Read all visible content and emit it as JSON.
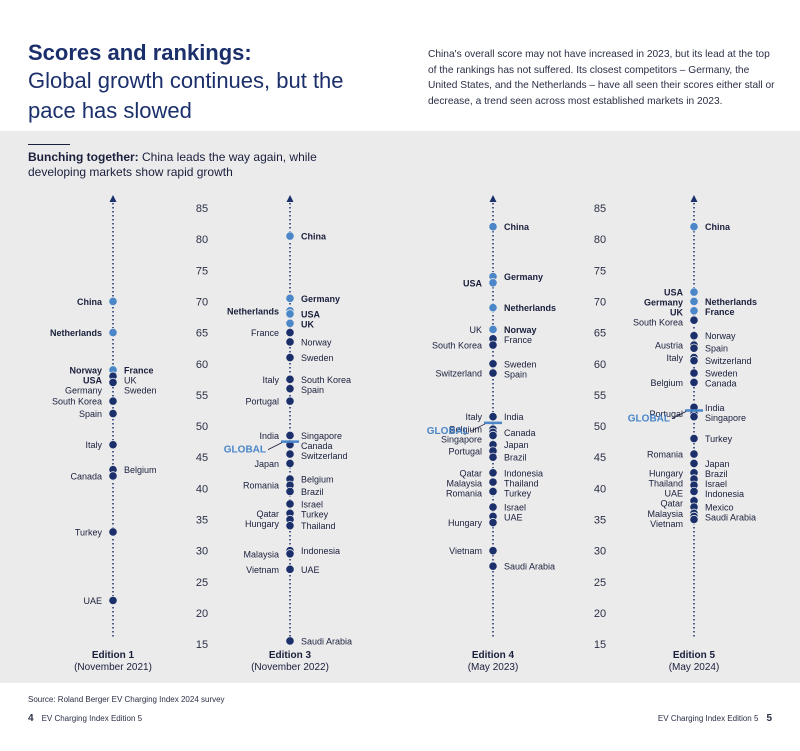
{
  "header": {
    "title_bold": "Scores and rankings:",
    "title_rest": "Global growth continues, but the pace has slowed",
    "intro": "China's overall score may not have increased in 2023, but its lead at the top of the rankings has not suffered. Its closest competitors – Germany, the United States, and the Netherlands – have all seen their scores either stall or decrease, a trend seen across most established markets in 2023."
  },
  "panel": {
    "subtitle_bold": "Bunching together:",
    "subtitle_rest": " China leads the way again, while developing markets show rapid growth"
  },
  "footer": {
    "source": "Source: Roland Berger EV Charging Index 2024 survey",
    "left_page": "4",
    "left_text": "EV Charging Index Edition 5",
    "right_text": "EV Charging Index Edition 5",
    "right_page": "5"
  },
  "colors": {
    "navy": "#1b2f6b",
    "light_blue": "#4a86c8",
    "panel": "#ebebeb"
  },
  "chart_data": {
    "type": "scatter",
    "title": "",
    "y_ticks": [
      85,
      80,
      75,
      70,
      65,
      60,
      55,
      50,
      45,
      40,
      35,
      30,
      25,
      20,
      15
    ],
    "ylim": [
      15,
      85
    ],
    "grid": false,
    "legend": "none",
    "editions": [
      {
        "name": "Edition 1",
        "date": "(November 2021)",
        "global_label": "",
        "global_value": null,
        "points": [
          {
            "label": "China",
            "value": 70,
            "highlight": true,
            "bold": true,
            "side": "left"
          },
          {
            "label": "Netherlands",
            "value": 65,
            "highlight": true,
            "bold": true,
            "side": "left"
          },
          {
            "label": "Norway",
            "value": 59,
            "highlight": true,
            "bold": true,
            "side": "left"
          },
          {
            "label": "France",
            "value": 59,
            "highlight": true,
            "bold": true,
            "side": "right"
          },
          {
            "label": "USA",
            "value": 58,
            "highlight": false,
            "bold": true,
            "side": "left"
          },
          {
            "label": "UK",
            "value": 58,
            "highlight": false,
            "bold": false,
            "side": "right"
          },
          {
            "label": "Germany",
            "value": 57,
            "highlight": false,
            "bold": false,
            "side": "left"
          },
          {
            "label": "Sweden",
            "value": 57,
            "highlight": false,
            "bold": false,
            "side": "right"
          },
          {
            "label": "South Korea",
            "value": 54,
            "highlight": false,
            "bold": false,
            "side": "left"
          },
          {
            "label": "Spain",
            "value": 52,
            "highlight": false,
            "bold": false,
            "side": "left"
          },
          {
            "label": "Italy",
            "value": 47,
            "highlight": false,
            "bold": false,
            "side": "left"
          },
          {
            "label": "Belgium",
            "value": 43,
            "highlight": false,
            "bold": false,
            "side": "right"
          },
          {
            "label": "Canada",
            "value": 42,
            "highlight": false,
            "bold": false,
            "side": "left"
          },
          {
            "label": "Turkey",
            "value": 33,
            "highlight": false,
            "bold": false,
            "side": "left"
          },
          {
            "label": "UAE",
            "value": 22,
            "highlight": false,
            "bold": false,
            "side": "left"
          }
        ]
      },
      {
        "name": "Edition 3",
        "date": "(November 2022)",
        "global_label": "GLOBAL",
        "global_value": 47.5,
        "points": [
          {
            "label": "China",
            "value": 80.5,
            "highlight": true,
            "bold": true,
            "side": "right"
          },
          {
            "label": "Germany",
            "value": 70.5,
            "highlight": true,
            "bold": true,
            "side": "right"
          },
          {
            "label": "Netherlands",
            "value": 68.5,
            "highlight": true,
            "bold": true,
            "side": "left"
          },
          {
            "label": "USA",
            "value": 68,
            "highlight": true,
            "bold": true,
            "side": "right"
          },
          {
            "label": "UK",
            "value": 66.5,
            "highlight": true,
            "bold": true,
            "side": "right"
          },
          {
            "label": "France",
            "value": 65,
            "highlight": false,
            "bold": false,
            "side": "left"
          },
          {
            "label": "Norway",
            "value": 63.5,
            "highlight": false,
            "bold": false,
            "side": "right"
          },
          {
            "label": "Sweden",
            "value": 61,
            "highlight": false,
            "bold": false,
            "side": "right"
          },
          {
            "label": "Italy",
            "value": 57.5,
            "highlight": false,
            "bold": false,
            "side": "left"
          },
          {
            "label": "South Korea",
            "value": 57.5,
            "highlight": false,
            "bold": false,
            "side": "right"
          },
          {
            "label": "Spain",
            "value": 56,
            "highlight": false,
            "bold": false,
            "side": "right"
          },
          {
            "label": "Portugal",
            "value": 54,
            "highlight": false,
            "bold": false,
            "side": "left"
          },
          {
            "label": "India",
            "value": 48.5,
            "highlight": false,
            "bold": false,
            "side": "left"
          },
          {
            "label": "Singapore",
            "value": 48.5,
            "highlight": false,
            "bold": false,
            "side": "right"
          },
          {
            "label": "Canada",
            "value": 47,
            "highlight": false,
            "bold": false,
            "side": "right"
          },
          {
            "label": "Switzerland",
            "value": 45.5,
            "highlight": false,
            "bold": false,
            "side": "right"
          },
          {
            "label": "Japan",
            "value": 44,
            "highlight": false,
            "bold": false,
            "side": "left"
          },
          {
            "label": "Belgium",
            "value": 41.5,
            "highlight": false,
            "bold": false,
            "side": "right"
          },
          {
            "label": "Romania",
            "value": 40.5,
            "highlight": false,
            "bold": false,
            "side": "left"
          },
          {
            "label": "Brazil",
            "value": 39.5,
            "highlight": false,
            "bold": false,
            "side": "right"
          },
          {
            "label": "Israel",
            "value": 37.5,
            "highlight": false,
            "bold": false,
            "side": "right"
          },
          {
            "label": "Qatar",
            "value": 36,
            "highlight": false,
            "bold": false,
            "side": "left"
          },
          {
            "label": "Turkey",
            "value": 36,
            "highlight": false,
            "bold": false,
            "side": "right"
          },
          {
            "label": "Hungary",
            "value": 35,
            "highlight": false,
            "bold": false,
            "side": "left"
          },
          {
            "label": "Thailand",
            "value": 34,
            "highlight": false,
            "bold": false,
            "side": "right"
          },
          {
            "label": "Indonesia",
            "value": 30,
            "highlight": false,
            "bold": false,
            "side": "right"
          },
          {
            "label": "Malaysia",
            "value": 29.5,
            "highlight": false,
            "bold": false,
            "side": "left"
          },
          {
            "label": "Vietnam",
            "value": 27,
            "highlight": false,
            "bold": false,
            "side": "left"
          },
          {
            "label": "UAE",
            "value": 27,
            "highlight": false,
            "bold": false,
            "side": "right"
          },
          {
            "label": "Saudi Arabia",
            "value": 15.5,
            "highlight": false,
            "bold": false,
            "side": "right"
          }
        ]
      },
      {
        "name": "Edition 4",
        "date": "(May 2023)",
        "global_label": "GLOBAL",
        "global_value": 50.5,
        "points": [
          {
            "label": "China",
            "value": 82,
            "highlight": true,
            "bold": true,
            "side": "right"
          },
          {
            "label": "Germany",
            "value": 74,
            "highlight": true,
            "bold": true,
            "side": "right"
          },
          {
            "label": "USA",
            "value": 73,
            "highlight": true,
            "bold": true,
            "side": "left"
          },
          {
            "label": "Netherlands",
            "value": 69,
            "highlight": true,
            "bold": true,
            "side": "right"
          },
          {
            "label": "UK",
            "value": 65.5,
            "highlight": true,
            "bold": false,
            "side": "left"
          },
          {
            "label": "Norway",
            "value": 65.5,
            "highlight": true,
            "bold": true,
            "side": "right"
          },
          {
            "label": "France",
            "value": 64,
            "highlight": false,
            "bold": false,
            "side": "right"
          },
          {
            "label": "South Korea",
            "value": 63,
            "highlight": false,
            "bold": false,
            "side": "left"
          },
          {
            "label": "Sweden",
            "value": 60,
            "highlight": false,
            "bold": false,
            "side": "right"
          },
          {
            "label": "Switzerland",
            "value": 58.5,
            "highlight": false,
            "bold": false,
            "side": "left"
          },
          {
            "label": "Spain",
            "value": 58.5,
            "highlight": false,
            "bold": false,
            "side": "right"
          },
          {
            "label": "Italy",
            "value": 51.5,
            "highlight": false,
            "bold": false,
            "side": "left"
          },
          {
            "label": "India",
            "value": 51.5,
            "highlight": false,
            "bold": false,
            "side": "right"
          },
          {
            "label": "Belgium",
            "value": 49.5,
            "highlight": false,
            "bold": false,
            "side": "left"
          },
          {
            "label": "Canada",
            "value": 49,
            "highlight": false,
            "bold": false,
            "side": "right"
          },
          {
            "label": "Singapore",
            "value": 48.5,
            "highlight": false,
            "bold": false,
            "side": "left"
          },
          {
            "label": "Japan",
            "value": 47,
            "highlight": false,
            "bold": false,
            "side": "right"
          },
          {
            "label": "Portugal",
            "value": 46,
            "highlight": false,
            "bold": false,
            "side": "left"
          },
          {
            "label": "Brazil",
            "value": 45,
            "highlight": false,
            "bold": false,
            "side": "right"
          },
          {
            "label": "Qatar",
            "value": 42.5,
            "highlight": false,
            "bold": false,
            "side": "left"
          },
          {
            "label": "Indonesia",
            "value": 42.5,
            "highlight": false,
            "bold": false,
            "side": "right"
          },
          {
            "label": "Malaysia",
            "value": 41,
            "highlight": false,
            "bold": false,
            "side": "left"
          },
          {
            "label": "Thailand",
            "value": 41,
            "highlight": false,
            "bold": false,
            "side": "right"
          },
          {
            "label": "Romania",
            "value": 39.5,
            "highlight": false,
            "bold": false,
            "side": "left"
          },
          {
            "label": "Turkey",
            "value": 39.5,
            "highlight": false,
            "bold": false,
            "side": "right"
          },
          {
            "label": "Israel",
            "value": 37,
            "highlight": false,
            "bold": false,
            "side": "right"
          },
          {
            "label": "UAE",
            "value": 35.5,
            "highlight": false,
            "bold": false,
            "side": "right"
          },
          {
            "label": "Hungary",
            "value": 34.5,
            "highlight": false,
            "bold": false,
            "side": "left"
          },
          {
            "label": "Vietnam",
            "value": 30,
            "highlight": false,
            "bold": false,
            "side": "left"
          },
          {
            "label": "Saudi Arabia",
            "value": 27.5,
            "highlight": false,
            "bold": false,
            "side": "right"
          }
        ]
      },
      {
        "name": "Edition 5",
        "date": "(May 2024)",
        "global_label": "GLOBAL",
        "global_value": 52.5,
        "points": [
          {
            "label": "China",
            "value": 82,
            "highlight": true,
            "bold": true,
            "side": "right"
          },
          {
            "label": "USA",
            "value": 71.5,
            "highlight": true,
            "bold": true,
            "side": "left"
          },
          {
            "label": "Germany",
            "value": 70,
            "highlight": true,
            "bold": true,
            "side": "left"
          },
          {
            "label": "Netherlands",
            "value": 70,
            "highlight": true,
            "bold": true,
            "side": "right"
          },
          {
            "label": "UK",
            "value": 68.5,
            "highlight": true,
            "bold": true,
            "side": "left"
          },
          {
            "label": "France",
            "value": 68.5,
            "highlight": true,
            "bold": true,
            "side": "right"
          },
          {
            "label": "South Korea",
            "value": 67,
            "highlight": false,
            "bold": false,
            "side": "left"
          },
          {
            "label": "Norway",
            "value": 64.5,
            "highlight": false,
            "bold": false,
            "side": "right"
          },
          {
            "label": "Austria",
            "value": 63,
            "highlight": false,
            "bold": false,
            "side": "left"
          },
          {
            "label": "Spain",
            "value": 62.5,
            "highlight": false,
            "bold": false,
            "side": "right"
          },
          {
            "label": "Italy",
            "value": 61,
            "highlight": false,
            "bold": false,
            "side": "left"
          },
          {
            "label": "Switzerland",
            "value": 60.5,
            "highlight": false,
            "bold": false,
            "side": "right"
          },
          {
            "label": "Sweden",
            "value": 58.5,
            "highlight": false,
            "bold": false,
            "side": "right"
          },
          {
            "label": "Belgium",
            "value": 57,
            "highlight": false,
            "bold": false,
            "side": "left"
          },
          {
            "label": "Canada",
            "value": 57,
            "highlight": false,
            "bold": false,
            "side": "right"
          },
          {
            "label": "Portugal",
            "value": 52,
            "highlight": false,
            "bold": false,
            "side": "left"
          },
          {
            "label": "India",
            "value": 53,
            "highlight": false,
            "bold": false,
            "side": "right"
          },
          {
            "label": "Singapore",
            "value": 51.5,
            "highlight": false,
            "bold": false,
            "side": "right"
          },
          {
            "label": "Turkey",
            "value": 48,
            "highlight": false,
            "bold": false,
            "side": "right"
          },
          {
            "label": "Romania",
            "value": 45.5,
            "highlight": false,
            "bold": false,
            "side": "left"
          },
          {
            "label": "Japan",
            "value": 44,
            "highlight": false,
            "bold": false,
            "side": "right"
          },
          {
            "label": "Hungary",
            "value": 42.5,
            "highlight": false,
            "bold": false,
            "side": "left"
          },
          {
            "label": "Brazil",
            "value": 42.5,
            "highlight": false,
            "bold": false,
            "side": "right"
          },
          {
            "label": "Thailand",
            "value": 41.5,
            "highlight": false,
            "bold": false,
            "side": "left"
          },
          {
            "label": "Israel",
            "value": 41.5,
            "highlight": false,
            "bold": false,
            "side": "right"
          },
          {
            "label": "Indonesia",
            "value": 40.5,
            "highlight": false,
            "bold": false,
            "side": "right"
          },
          {
            "label": "UAE",
            "value": 39.5,
            "highlight": false,
            "bold": false,
            "side": "left"
          },
          {
            "label": "Qatar",
            "value": 38,
            "highlight": false,
            "bold": false,
            "side": "left"
          },
          {
            "label": "Mexico",
            "value": 37,
            "highlight": false,
            "bold": false,
            "side": "right"
          },
          {
            "label": "Malaysia",
            "value": 36,
            "highlight": false,
            "bold": false,
            "side": "left"
          },
          {
            "label": "Saudi Arabia",
            "value": 35.5,
            "highlight": false,
            "bold": false,
            "side": "right"
          },
          {
            "label": "Vietnam",
            "value": 35,
            "highlight": false,
            "bold": false,
            "side": "left"
          }
        ]
      }
    ]
  }
}
